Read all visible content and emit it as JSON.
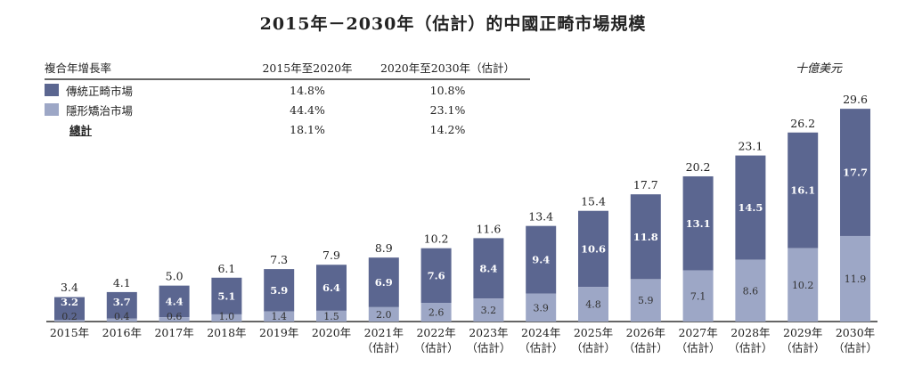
{
  "chart_data": {
    "type": "bar",
    "stacked": true,
    "title": "2015年－2030年（估計）的中國正畸市場規模",
    "unit": "十億美元",
    "categories": [
      "2015年",
      "2016年",
      "2017年",
      "2018年",
      "2019年",
      "2020年",
      "2021年",
      "2022年",
      "2023年",
      "2024年",
      "2025年",
      "2026年",
      "2027年",
      "2028年",
      "2029年",
      "2030年"
    ],
    "category_sublabels": [
      "",
      "",
      "",
      "",
      "",
      "",
      "（估計）",
      "（估計）",
      "（估計）",
      "（估計）",
      "（估計）",
      "（估計）",
      "（估計）",
      "（估計）",
      "（估計）",
      "（估計）"
    ],
    "series": [
      {
        "name": "隱形矯治市場",
        "color": "#9da7c6",
        "values": [
          0.2,
          0.4,
          0.6,
          1.0,
          1.4,
          1.5,
          2.0,
          2.6,
          3.2,
          3.9,
          4.8,
          5.9,
          7.1,
          8.6,
          10.2,
          11.9
        ]
      },
      {
        "name": "傳統正畸市場",
        "color": "#5b6690",
        "values": [
          3.2,
          3.7,
          4.4,
          5.1,
          5.9,
          6.4,
          6.9,
          7.6,
          8.4,
          9.4,
          10.6,
          11.8,
          13.1,
          14.5,
          16.1,
          17.7
        ]
      }
    ],
    "totals": [
      3.4,
      4.1,
      5.0,
      6.1,
      7.3,
      7.9,
      8.9,
      10.2,
      11.6,
      13.4,
      15.4,
      17.7,
      20.2,
      23.1,
      26.2,
      29.6
    ],
    "ylim": [
      0,
      30
    ],
    "grid": false,
    "legend_placement": "top-left"
  },
  "cagr_table": {
    "header": [
      "複合年增長率",
      "2015年至2020年",
      "2020年至2030年（估計）"
    ],
    "rows": [
      {
        "label": "傳統正畸市場",
        "color": "#5b6690",
        "a": "14.8%",
        "b": "10.8%"
      },
      {
        "label": "隱形矯治市場",
        "color": "#9da7c6",
        "a": "44.4%",
        "b": "23.1%"
      },
      {
        "label": "總計",
        "a": "18.1%",
        "b": "14.2%"
      }
    ]
  }
}
